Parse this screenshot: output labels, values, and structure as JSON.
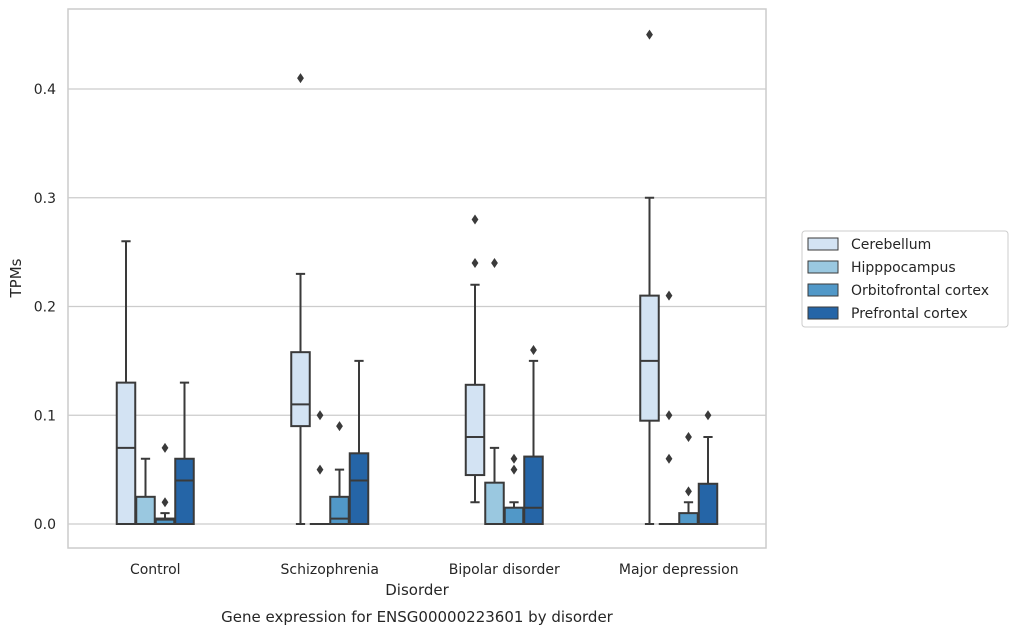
{
  "chart_data": {
    "type": "box",
    "caption": "Gene expression for ENSG00000223601 by disorder",
    "xlabel": "Disorder",
    "ylabel": "TPMs",
    "ylim": [
      -0.022,
      0.475
    ],
    "yticks": [
      0.0,
      0.1,
      0.2,
      0.3,
      0.4
    ],
    "ytick_labels": [
      "0.0",
      "0.1",
      "0.2",
      "0.3",
      "0.4"
    ],
    "grid": "horizontal",
    "legend_position": "right",
    "categories": [
      "Control",
      "Schizophrenia",
      "Bipolar disorder",
      "Major depression"
    ],
    "series": [
      {
        "name": "Cerebellum",
        "color": "#d3e3f3",
        "boxes": [
          {
            "whislo": 0.0,
            "q1": 0.0,
            "med": 0.07,
            "q3": 0.13,
            "whishi": 0.26,
            "fliers": []
          },
          {
            "whislo": 0.0,
            "q1": 0.09,
            "med": 0.11,
            "q3": 0.158,
            "whishi": 0.23,
            "fliers": [
              0.41
            ]
          },
          {
            "whislo": 0.02,
            "q1": 0.045,
            "med": 0.08,
            "q3": 0.128,
            "whishi": 0.22,
            "fliers": [
              0.28,
              0.24
            ]
          },
          {
            "whislo": 0.0,
            "q1": 0.095,
            "med": 0.15,
            "q3": 0.21,
            "whishi": 0.3,
            "fliers": [
              0.45
            ]
          }
        ]
      },
      {
        "name": "Hipppocampus",
        "color": "#9ac8e0",
        "boxes": [
          {
            "whislo": 0.0,
            "q1": 0.0,
            "med": 0.0,
            "q3": 0.025,
            "whishi": 0.06,
            "fliers": []
          },
          {
            "whislo": 0.0,
            "q1": 0.0,
            "med": 0.0,
            "q3": 0.0,
            "whishi": 0.0,
            "fliers": [
              0.1,
              0.05
            ]
          },
          {
            "whislo": 0.0,
            "q1": 0.0,
            "med": 0.0,
            "q3": 0.038,
            "whishi": 0.07,
            "fliers": [
              0.24
            ]
          },
          {
            "whislo": 0.0,
            "q1": 0.0,
            "med": 0.0,
            "q3": 0.0,
            "whishi": 0.0,
            "fliers": [
              0.21,
              0.1,
              0.06
            ]
          }
        ]
      },
      {
        "name": "Orbitofrontal cortex",
        "color": "#5198c8",
        "boxes": [
          {
            "whislo": 0.0,
            "q1": 0.0,
            "med": 0.004,
            "q3": 0.005,
            "whishi": 0.01,
            "fliers": [
              0.07,
              0.02
            ]
          },
          {
            "whislo": 0.0,
            "q1": 0.0,
            "med": 0.005,
            "q3": 0.025,
            "whishi": 0.05,
            "fliers": [
              0.09
            ]
          },
          {
            "whislo": 0.0,
            "q1": 0.0,
            "med": 0.0,
            "q3": 0.015,
            "whishi": 0.02,
            "fliers": [
              0.06,
              0.05
            ]
          },
          {
            "whislo": 0.0,
            "q1": 0.0,
            "med": 0.0,
            "q3": 0.01,
            "whishi": 0.02,
            "fliers": [
              0.08,
              0.03
            ]
          }
        ]
      },
      {
        "name": "Prefrontal cortex",
        "color": "#2565a7",
        "boxes": [
          {
            "whislo": 0.0,
            "q1": 0.0,
            "med": 0.04,
            "q3": 0.06,
            "whishi": 0.13,
            "fliers": []
          },
          {
            "whislo": 0.0,
            "q1": 0.0,
            "med": 0.04,
            "q3": 0.065,
            "whishi": 0.15,
            "fliers": []
          },
          {
            "whislo": 0.0,
            "q1": 0.0,
            "med": 0.015,
            "q3": 0.062,
            "whishi": 0.15,
            "fliers": [
              0.16
            ]
          },
          {
            "whislo": 0.0,
            "q1": 0.0,
            "med": 0.0,
            "q3": 0.037,
            "whishi": 0.08,
            "fliers": [
              0.1
            ]
          }
        ]
      }
    ]
  }
}
